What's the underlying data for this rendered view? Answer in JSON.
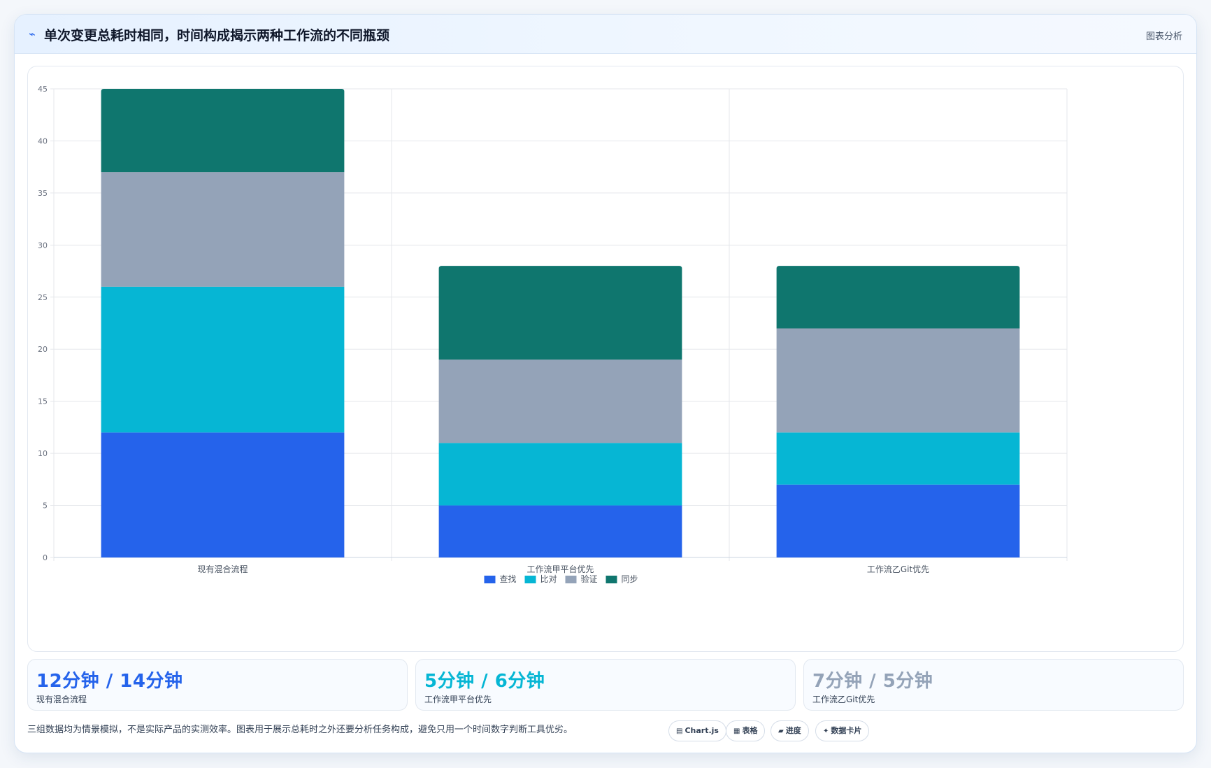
{
  "header": {
    "icon": "chart-line-icon",
    "title": "单次变更总耗时相同，时间构成揭示两种工作流的不同瓶颈",
    "tag": "图表分析"
  },
  "colors": {
    "search": "#2563eb",
    "compare": "#06b6d4",
    "verify": "#94a3b8",
    "sync": "#0f766e"
  },
  "chart_data": {
    "type": "bar",
    "stacked": true,
    "categories": [
      "现有混合流程",
      "工作流甲平台优先",
      "工作流乙Git优先"
    ],
    "series": [
      {
        "name": "查找",
        "values": [
          12,
          5,
          7
        ],
        "color": "#2563eb"
      },
      {
        "name": "比对",
        "values": [
          14,
          6,
          5
        ],
        "color": "#06b6d4"
      },
      {
        "name": "验证",
        "values": [
          11,
          8,
          10
        ],
        "color": "#94a3b8"
      },
      {
        "name": "同步",
        "values": [
          8,
          9,
          6
        ],
        "color": "#0f766e"
      }
    ],
    "ylim": [
      0,
      45
    ],
    "yticks": [
      0,
      5,
      10,
      15,
      20,
      25,
      30,
      35,
      40,
      45
    ],
    "grid": true,
    "legend_position": "bottom"
  },
  "stats": [
    {
      "value": "12分钟 / 14分钟",
      "label": "现有混合流程",
      "color": "#2563eb"
    },
    {
      "value": "5分钟 / 6分钟",
      "label": "工作流甲平台优先",
      "color": "#06b6d4"
    },
    {
      "value": "7分钟 / 5分钟",
      "label": "工作流乙Git优先",
      "color": "#94a3b8"
    }
  ],
  "footnote": "三组数据均为情景模拟，不是实际产品的实测效率。图表用于展示总耗时之外还要分析任务构成，避免只用一个时间数字判断工具优劣。",
  "pills": [
    {
      "icon": "▤",
      "label": "Chart.js"
    },
    {
      "icon": "▦",
      "label": "表格"
    },
    {
      "icon": "▰",
      "label": "进度"
    },
    {
      "icon": "✦",
      "label": "数据卡片"
    }
  ]
}
